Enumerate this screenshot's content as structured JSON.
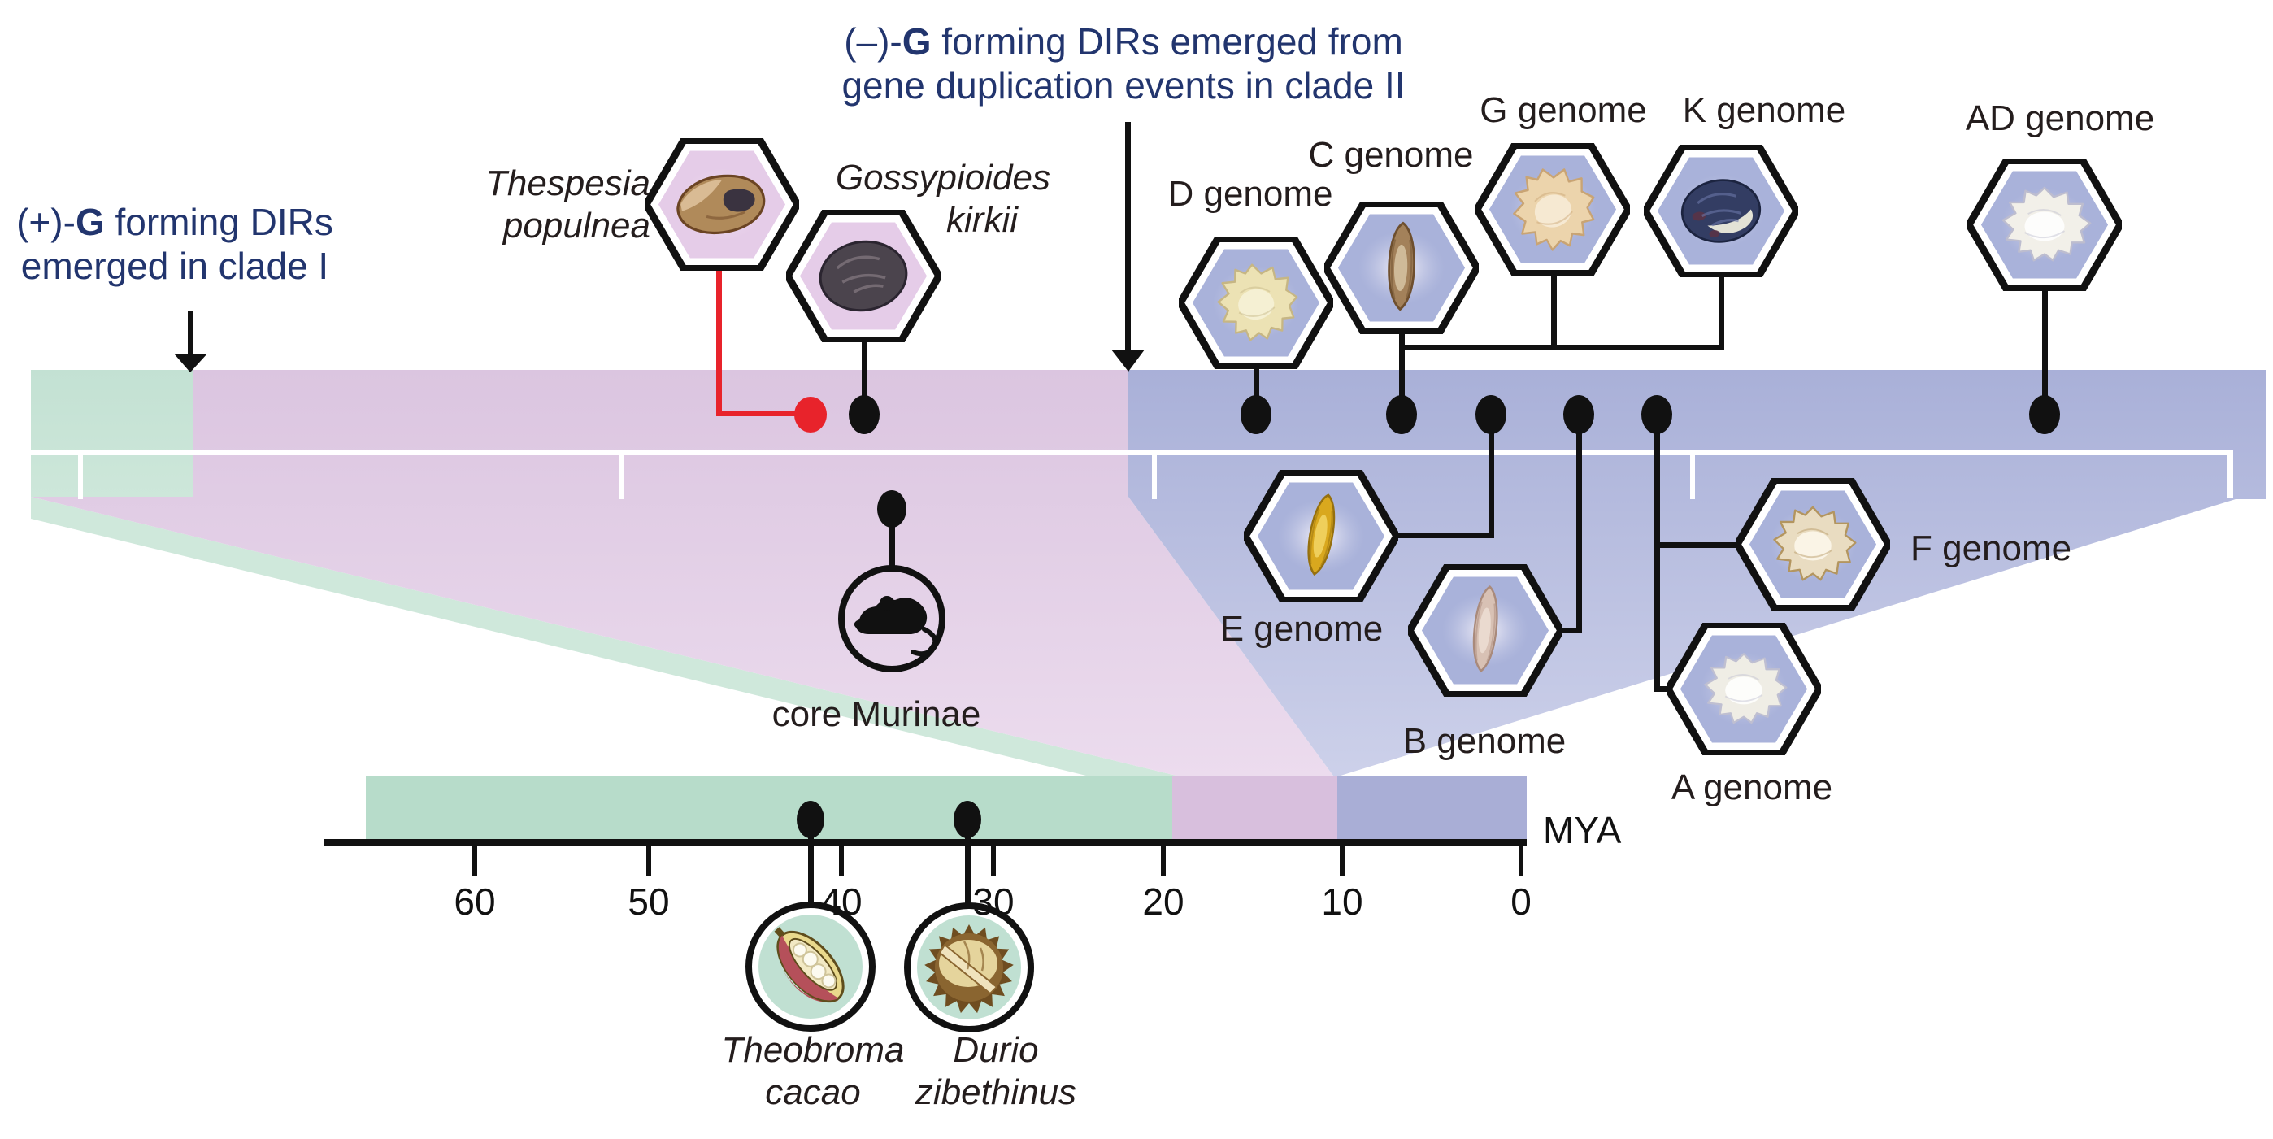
{
  "annotations": {
    "clade1": {
      "pre": "(+)-",
      "g": "G",
      "post": " forming DIRs",
      "line2": "emerged in clade I"
    },
    "clade2": {
      "pre": "(–)-",
      "g": "G",
      "post": " forming DIRs emerged from",
      "line2": "gene duplication events in clade II"
    }
  },
  "species": {
    "thespesia": {
      "line1": "Thespesia",
      "line2": "populnea"
    },
    "gossypioides": {
      "line1": "Gossypioides",
      "line2": "kirkii"
    },
    "theobroma": {
      "line1": "Theobroma",
      "line2": "cacao"
    },
    "durio": {
      "line1": "Durio",
      "line2": "zibethinus"
    },
    "murinae": {
      "label": "core Murinae"
    }
  },
  "genomes": {
    "thespesia": {
      "label": "",
      "bg": "pink",
      "seed": {
        "type": "thespesia",
        "main": "#b08a5a",
        "shade": "#6b4423",
        "light": "#dec09a",
        "patch": "#3a3340"
      }
    },
    "gossypioides": {
      "label": "",
      "bg": "pink",
      "seed": {
        "type": "round",
        "main": "#4b444d",
        "shade": "#2b2530",
        "light": "#8f838c"
      }
    },
    "d": {
      "label": "D genome",
      "bg": "blue",
      "seed": {
        "type": "fluff",
        "main": "#ece2b4",
        "shade": "#c6b684",
        "light": "#f7f2d8"
      }
    },
    "c": {
      "label": "C genome",
      "bg": "blue",
      "seed": {
        "type": "teardrop_v",
        "main": "#a3815a",
        "shade": "#6e4f2e",
        "light": "#d9c8a8"
      }
    },
    "g": {
      "label": "G genome",
      "bg": "blue",
      "seed": {
        "type": "fluff",
        "main": "#ecd4ac",
        "shade": "#c9a474",
        "light": "#f8ecd8"
      }
    },
    "k": {
      "label": "K genome",
      "bg": "blue",
      "seed": {
        "type": "round",
        "main": "#333d63",
        "shade": "#1c2440",
        "light": "#6a77a8",
        "patch": "#e3e2d6",
        "spots": "#5c3344"
      }
    },
    "ad": {
      "label": "AD genome",
      "bg": "blue",
      "seed": {
        "type": "fluff",
        "main": "#f2f0e9",
        "shade": "#bdbdcf",
        "light": "#ffffff"
      }
    },
    "e": {
      "label": "E genome",
      "bg": "blue",
      "seed": {
        "type": "teardrop_v",
        "main": "#d9a81e",
        "shade": "#96700e",
        "light": "#f4d86a"
      }
    },
    "b": {
      "label": "B genome",
      "bg": "blue",
      "seed": {
        "type": "teardrop_v",
        "main": "#d8c1b4",
        "shade": "#a98a7b",
        "light": "#efe0d6"
      }
    },
    "f": {
      "label": "F genome",
      "bg": "blue",
      "seed": {
        "type": "fluff",
        "main": "#e9dcc1",
        "shade": "#b3955f",
        "light": "#fdf8ec"
      }
    },
    "a": {
      "label": "A genome",
      "bg": "blue",
      "seed": {
        "type": "fluff",
        "main": "#efede5",
        "shade": "#bfbfd1",
        "light": "#ffffff"
      }
    }
  },
  "icons": {
    "theobroma": {
      "bg": "#c0e0d2",
      "husk": "#e9d98c",
      "husk_dark": "#5f4d1c",
      "red": "#b5505a",
      "flesh": "#f2e9c4",
      "bean": "#fcfaf0"
    },
    "durio": {
      "bg": "#c0e0d2",
      "spikes": "#6f4d20",
      "rind": "#8a6530",
      "flesh": "#e5d49c",
      "band": "#f0e3bd"
    },
    "mouse": {
      "stroke": "#111111"
    }
  },
  "timeline": {
    "unit": "MYA",
    "ticks": [
      "60",
      "50",
      "40",
      "30",
      "20",
      "10",
      "0"
    ]
  },
  "colors": {
    "navy": "#22356e",
    "red": "#e8232b",
    "line": "#111111",
    "band_green": "#c3e1d3",
    "band_pink": "#dbc5e0",
    "band_blue": "#a9b0d8",
    "band_pink_light": "#ecdcee",
    "band_blue_light": "#cdd1ea",
    "stripe_green": "#cfe8db",
    "lower_green": "#b7dcca",
    "lower_pink": "#d8bfdd",
    "lower_blue": "#a9aed6",
    "hex_pink": "#e5cce8",
    "hex_blue": "#a9b2da",
    "label": "#241d1d"
  }
}
